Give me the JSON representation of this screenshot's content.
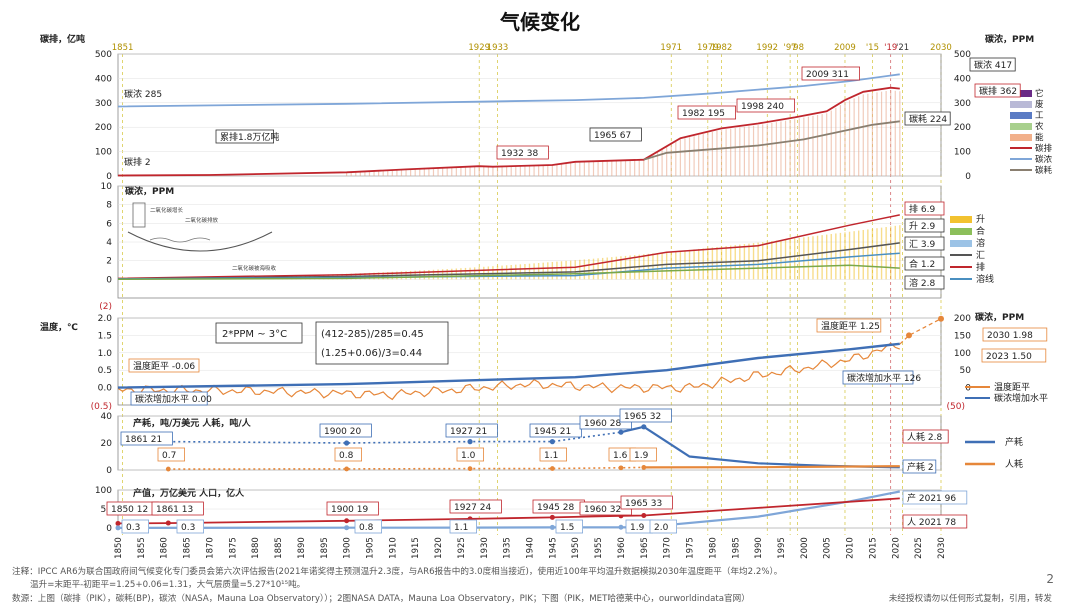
{
  "title": "气候变化",
  "colors": {
    "red": "#c0262d",
    "blue_line": "#7fa6d8",
    "dark_blue": "#3f6fb5",
    "brown": "#8a7f70",
    "orange": "#e6873a",
    "yellow": "#f2c230",
    "green": "#8cbf5a",
    "light_blue": "#9cc3e6",
    "purple": "#6a2a86",
    "gold_line": "#c8b400"
  },
  "top_year_labels": [
    {
      "text": "1851",
      "year": 1851,
      "color": "#b09000"
    },
    {
      "text": "1929",
      "year": 1929,
      "color": "#b09000"
    },
    {
      "text": "1933",
      "year": 1933,
      "color": "#b09000"
    },
    {
      "text": "1971",
      "year": 1971,
      "color": "#b09000"
    },
    {
      "text": "1979",
      "year": 1979,
      "color": "#b09000"
    },
    {
      "text": "1982",
      "year": 1982,
      "color": "#b09000"
    },
    {
      "text": "1992",
      "year": 1992,
      "color": "#b09000"
    },
    {
      "text": "'97",
      "year": 1997,
      "color": "#b09000"
    },
    {
      "text": "'98",
      "year": 1998.6,
      "color": "#b09000"
    },
    {
      "text": "2009",
      "year": 2009,
      "color": "#b09000"
    },
    {
      "text": "'15",
      "year": 2015,
      "color": "#b09000"
    },
    {
      "text": "'19",
      "year": 2019,
      "color": "#c0262d"
    },
    {
      "text": "'21",
      "year": 2021.6,
      "color": "#333333"
    },
    {
      "text": "2030",
      "year": 2030,
      "color": "#b09000"
    }
  ],
  "chart_data": [
    {
      "type": "area",
      "panel": "carbon-emission-concentration",
      "left_axis_title": "碳排，亿吨",
      "right_axis_title": "碳浓，PPM",
      "ylim_left": [
        0,
        500
      ],
      "ylim_right": [
        0,
        500
      ],
      "y_ticks_left": [
        "0",
        "100",
        "200",
        "300",
        "400",
        "500"
      ],
      "y_ticks_right": [
        "0",
        "100",
        "200",
        "300",
        "400",
        "500"
      ],
      "series": [
        {
          "name": "碳排",
          "color": "#c0262d",
          "x": [
            1850,
            1870,
            1900,
            1913,
            1929,
            1932,
            1945,
            1950,
            1965,
            1973,
            1982,
            1990,
            1998,
            2005,
            2009,
            2013,
            2019,
            2021
          ],
          "values": [
            2,
            4,
            15,
            27,
            40,
            38,
            45,
            58,
            67,
            155,
            195,
            215,
            240,
            265,
            311,
            345,
            362,
            358
          ]
        },
        {
          "name": "碳浓",
          "color": "#7fa6d8",
          "x": [
            1850,
            1900,
            1950,
            1965,
            1980,
            1990,
            2000,
            2010,
            2021
          ],
          "values": [
            285,
            296,
            311,
            320,
            339,
            354,
            369,
            389,
            417
          ]
        },
        {
          "name": "碳耗",
          "color": "#8a7f70",
          "x": [
            1965,
            1970,
            1980,
            1990,
            2000,
            2010,
            2015,
            2021
          ],
          "values": [
            67,
            95,
            110,
            125,
            150,
            190,
            210,
            224
          ]
        }
      ],
      "legend": [
        "它",
        "废",
        "工",
        "农",
        "能",
        "碳排",
        "碳浓",
        "碳耗"
      ],
      "annotations": [
        "碳浓 285",
        "碳排 2",
        "累排1.8万亿吨",
        "1932 38",
        "1965 67",
        "1982 195",
        "1998 240",
        "2009 311",
        "碳浓 417",
        "碳排 362",
        "碳耗 224"
      ]
    },
    {
      "type": "line",
      "panel": "ppm-budget",
      "axis_title": "碳浓，PPM",
      "ylim": [
        -2,
        10
      ],
      "y_ticks": [
        "0",
        "2",
        "4",
        "6",
        "8",
        "10"
      ],
      "bottom_marker": "(2)",
      "series": [
        {
          "name": "排",
          "color": "#c0262d",
          "x": [
            1850,
            1900,
            1950,
            1970,
            1990,
            2010,
            2021
          ],
          "values": [
            0.1,
            0.5,
            1.3,
            2.9,
            3.6,
            5.8,
            6.9
          ]
        },
        {
          "name": "汇",
          "color": "#555555",
          "x": [
            1850,
            1900,
            1950,
            1970,
            1990,
            2010,
            2021
          ],
          "values": [
            0.05,
            0.3,
            0.8,
            1.6,
            2.0,
            3.2,
            3.9
          ]
        },
        {
          "name": "溶线",
          "color": "#4a8fc0",
          "x": [
            1850,
            1900,
            1950,
            1970,
            1990,
            2010,
            2021
          ],
          "values": [
            0.05,
            0.2,
            0.4,
            1.2,
            1.6,
            2.4,
            2.8
          ]
        },
        {
          "name": "合",
          "color": "#7aa84a",
          "x": [
            1850,
            1900,
            1950,
            1970,
            1990,
            2010,
            2021
          ],
          "values": [
            0.0,
            0.1,
            0.6,
            0.9,
            1.2,
            1.5,
            1.2
          ]
        }
      ],
      "legend": [
        "升",
        "合",
        "溶",
        "汇",
        "排",
        "溶线"
      ],
      "annotations": [
        "排 6.9",
        "升 2.9",
        "汇 3.9",
        "合 1.2",
        "溶 2.8"
      ],
      "inset_labels": [
        "二氧化碳增长",
        "二氧化碳排放",
        "二氧化碳被海吸收"
      ]
    },
    {
      "type": "line",
      "panel": "temperature",
      "axis_title": "温度，℃",
      "right_axis_title": "碳浓，PPM",
      "ylim": [
        -0.5,
        2.0
      ],
      "y_ticks": [
        "0.0",
        "0.5",
        "1.0",
        "1.5",
        "2.0"
      ],
      "ylim_right": [
        -50,
        200
      ],
      "y_ticks_right": [
        "0",
        "50",
        "100",
        "150",
        "200"
      ],
      "bottom_left_marker": "(0.5)",
      "bottom_right_marker": "(50)",
      "series": [
        {
          "name": "温度距平",
          "color": "#e6873a",
          "x": [
            1850,
            1880,
            1910,
            1940,
            1960,
            1975,
            1990,
            2000,
            2010,
            2021
          ],
          "values": [
            -0.06,
            -0.1,
            -0.2,
            0.1,
            0.0,
            0.0,
            0.35,
            0.55,
            0.8,
            1.25
          ]
        },
        {
          "name": "碳浓增加水平",
          "color": "#3f6fb5",
          "x": [
            1850,
            1900,
            1950,
            1970,
            1990,
            2010,
            2021
          ],
          "values": [
            0.0,
            0.1,
            0.3,
            0.5,
            0.85,
            1.1,
            1.26
          ]
        }
      ],
      "legend": [
        "温度距平",
        "碳浓增加水平"
      ],
      "annotations": [
        "温度距平 -0.06",
        "碳浓增加水平 0.00",
        "温度距平 1.25",
        "碳浓增加水平 126",
        "2023 1.50",
        "2030 1.98"
      ],
      "formula_box": [
        "2*PPM ~ 3°C",
        "(412-285)/285=0.45",
        "(1.25+0.06)/3=0.44"
      ]
    },
    {
      "type": "line",
      "panel": "carbon-intensity",
      "axis_title": "产耗，吨/万美元 人耗，吨/人",
      "ylim": [
        0,
        40
      ],
      "y_ticks": [
        "0",
        "20",
        "40"
      ],
      "series": [
        {
          "name": "产耗",
          "color": "#3f6fb5",
          "x": [
            1861,
            1900,
            1927,
            1945,
            1960,
            1965,
            1975,
            1990,
            2005,
            2021
          ],
          "values": [
            21,
            20,
            21,
            21,
            28,
            32,
            10,
            5,
            3,
            2
          ]
        },
        {
          "name": "人耗",
          "color": "#e6873a",
          "x": [
            1861,
            1900,
            1927,
            1945,
            1960,
            1965,
            1990,
            2021
          ],
          "values": [
            0.7,
            0.8,
            1.0,
            1.1,
            1.6,
            1.9,
            2.1,
            2.8
          ]
        }
      ],
      "legend": [
        "产耗",
        "人耗"
      ],
      "annotations": [
        "1861 21",
        "1900 20",
        "1927 21",
        "1945 21",
        "1960 28",
        "1965 32",
        "0.7",
        "0.8",
        "1.0",
        "1.1",
        "1.6",
        "1.9",
        "人耗 2.8",
        "产耗 2"
      ]
    },
    {
      "type": "line",
      "panel": "gdp-population",
      "axis_title": "产值，万亿美元 人口，亿人",
      "ylim": [
        0,
        100
      ],
      "y_ticks": [
        "0",
        "50",
        "100"
      ],
      "series": [
        {
          "name": "产值",
          "color": "#7fa6d8",
          "x": [
            1850,
            1900,
            1927,
            1945,
            1960,
            1965,
            1990,
            2010,
            2021
          ],
          "values": [
            0.3,
            0.8,
            1.1,
            1.5,
            1.9,
            2.0,
            30,
            70,
            96
          ]
        },
        {
          "name": "人口",
          "color": "#c0262d",
          "x": [
            1850,
            1861,
            1900,
            1927,
            1945,
            1960,
            1965,
            1990,
            2021
          ],
          "values": [
            12,
            13,
            19,
            24,
            28,
            32,
            33,
            53,
            78
          ]
        }
      ],
      "annotations": [
        "1850 12",
        "1861 13",
        "1900 19",
        "1927 24",
        "1945 28",
        "1960 32",
        "1965 33",
        "0.3",
        "0.3",
        "0.8",
        "1.1",
        "1.5",
        "1.9",
        "2.0",
        "产 2021 96",
        "人 2021 78"
      ]
    }
  ],
  "x_axis": {
    "xlim": [
      1850,
      2030
    ],
    "tick_labels": [
      "1850",
      "1855",
      "1860",
      "1865",
      "1870",
      "1875",
      "1880",
      "1885",
      "1890",
      "1895",
      "1900",
      "1905",
      "1910",
      "1915",
      "1920",
      "1925",
      "1930",
      "1935",
      "1940",
      "1945",
      "1950",
      "1955",
      "1960",
      "1965",
      "1970",
      "1975",
      "1980",
      "1985",
      "1990",
      "1995",
      "2000",
      "2005",
      "2010",
      "2015",
      "2020",
      "2025",
      "2030"
    ]
  },
  "footnotes": {
    "line1": "注释：IPCC AR6为联合国政府间气候变化专门委员会第六次评估报告(2021年诺奖得主预测温升2.3度，与AR6报告中的3.0度相当接近)，使用近100年平均温升数据模拟2030年温度距平（年均2.2%）。",
    "line2": "温升=末距平-初距平=1.25+0.06=1.31，大气层质量=5.27*10¹⁵吨。",
    "line3": "数源：上图（碳排（PIK），碳耗(BP)，碳浓（NASA，Mauna Loa Observatory））；2图NASA DATA，Mauna Loa Observatory，PIK；下图（PIK，MET哈德莱中心，ourworldindata官网）",
    "line4": "未经授权请勿以任何形式复制，引用，转发",
    "page_number": "2"
  }
}
